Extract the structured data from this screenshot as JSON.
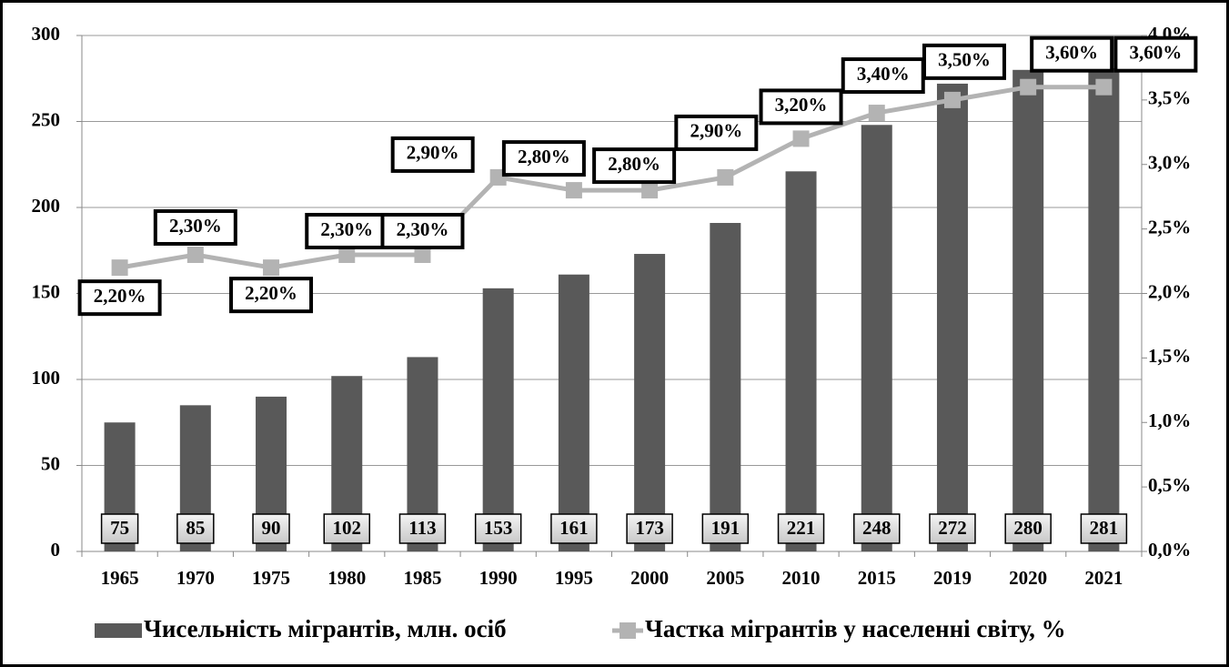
{
  "chart_data": {
    "type": "bar_line",
    "categories": [
      "1965",
      "1970",
      "1975",
      "1980",
      "1985",
      "1990",
      "1995",
      "2000",
      "2005",
      "2010",
      "2015",
      "2019",
      "2020",
      "2021"
    ],
    "series": [
      {
        "name": "Чисельність мігрантів, млн. осіб",
        "type": "bar",
        "color": "#595959",
        "values": [
          75,
          85,
          90,
          102,
          113,
          153,
          161,
          173,
          191,
          221,
          248,
          272,
          280,
          281
        ]
      },
      {
        "name": "Частка мігрантів у населенні світу,  %",
        "type": "line",
        "axis": "y2",
        "color": "#b3b3b3",
        "values": [
          2.2,
          2.3,
          2.2,
          2.3,
          2.3,
          2.9,
          2.8,
          2.8,
          2.9,
          3.2,
          3.4,
          3.5,
          3.6,
          3.6
        ],
        "value_labels": [
          "2,20%",
          "2,30%",
          "2,20%",
          "2,30%",
          "2,30%",
          "2,90%",
          "2,80%",
          "2,80%",
          "2,90%",
          "3,20%",
          "3,40%",
          "3,50%",
          "3,60%",
          "3,60%"
        ]
      }
    ],
    "ylim": [
      0,
      300
    ],
    "yticks": [
      0,
      50,
      100,
      150,
      200,
      250,
      300
    ],
    "y2lim": [
      0,
      4
    ],
    "y2ticks": [
      {
        "value": 0,
        "label": "0,0%"
      },
      {
        "value": 0.5,
        "label": "0,5%"
      },
      {
        "value": 1,
        "label": "1,0%"
      },
      {
        "value": 1.5,
        "label": "1,5%"
      },
      {
        "value": 2,
        "label": "2,0%"
      },
      {
        "value": 2.5,
        "label": "2,5%"
      },
      {
        "value": 3,
        "label": "3,0%"
      },
      {
        "value": 3.5,
        "label": "3,5%"
      },
      {
        "value": 4,
        "label": "4,0%"
      }
    ],
    "grid": true
  }
}
